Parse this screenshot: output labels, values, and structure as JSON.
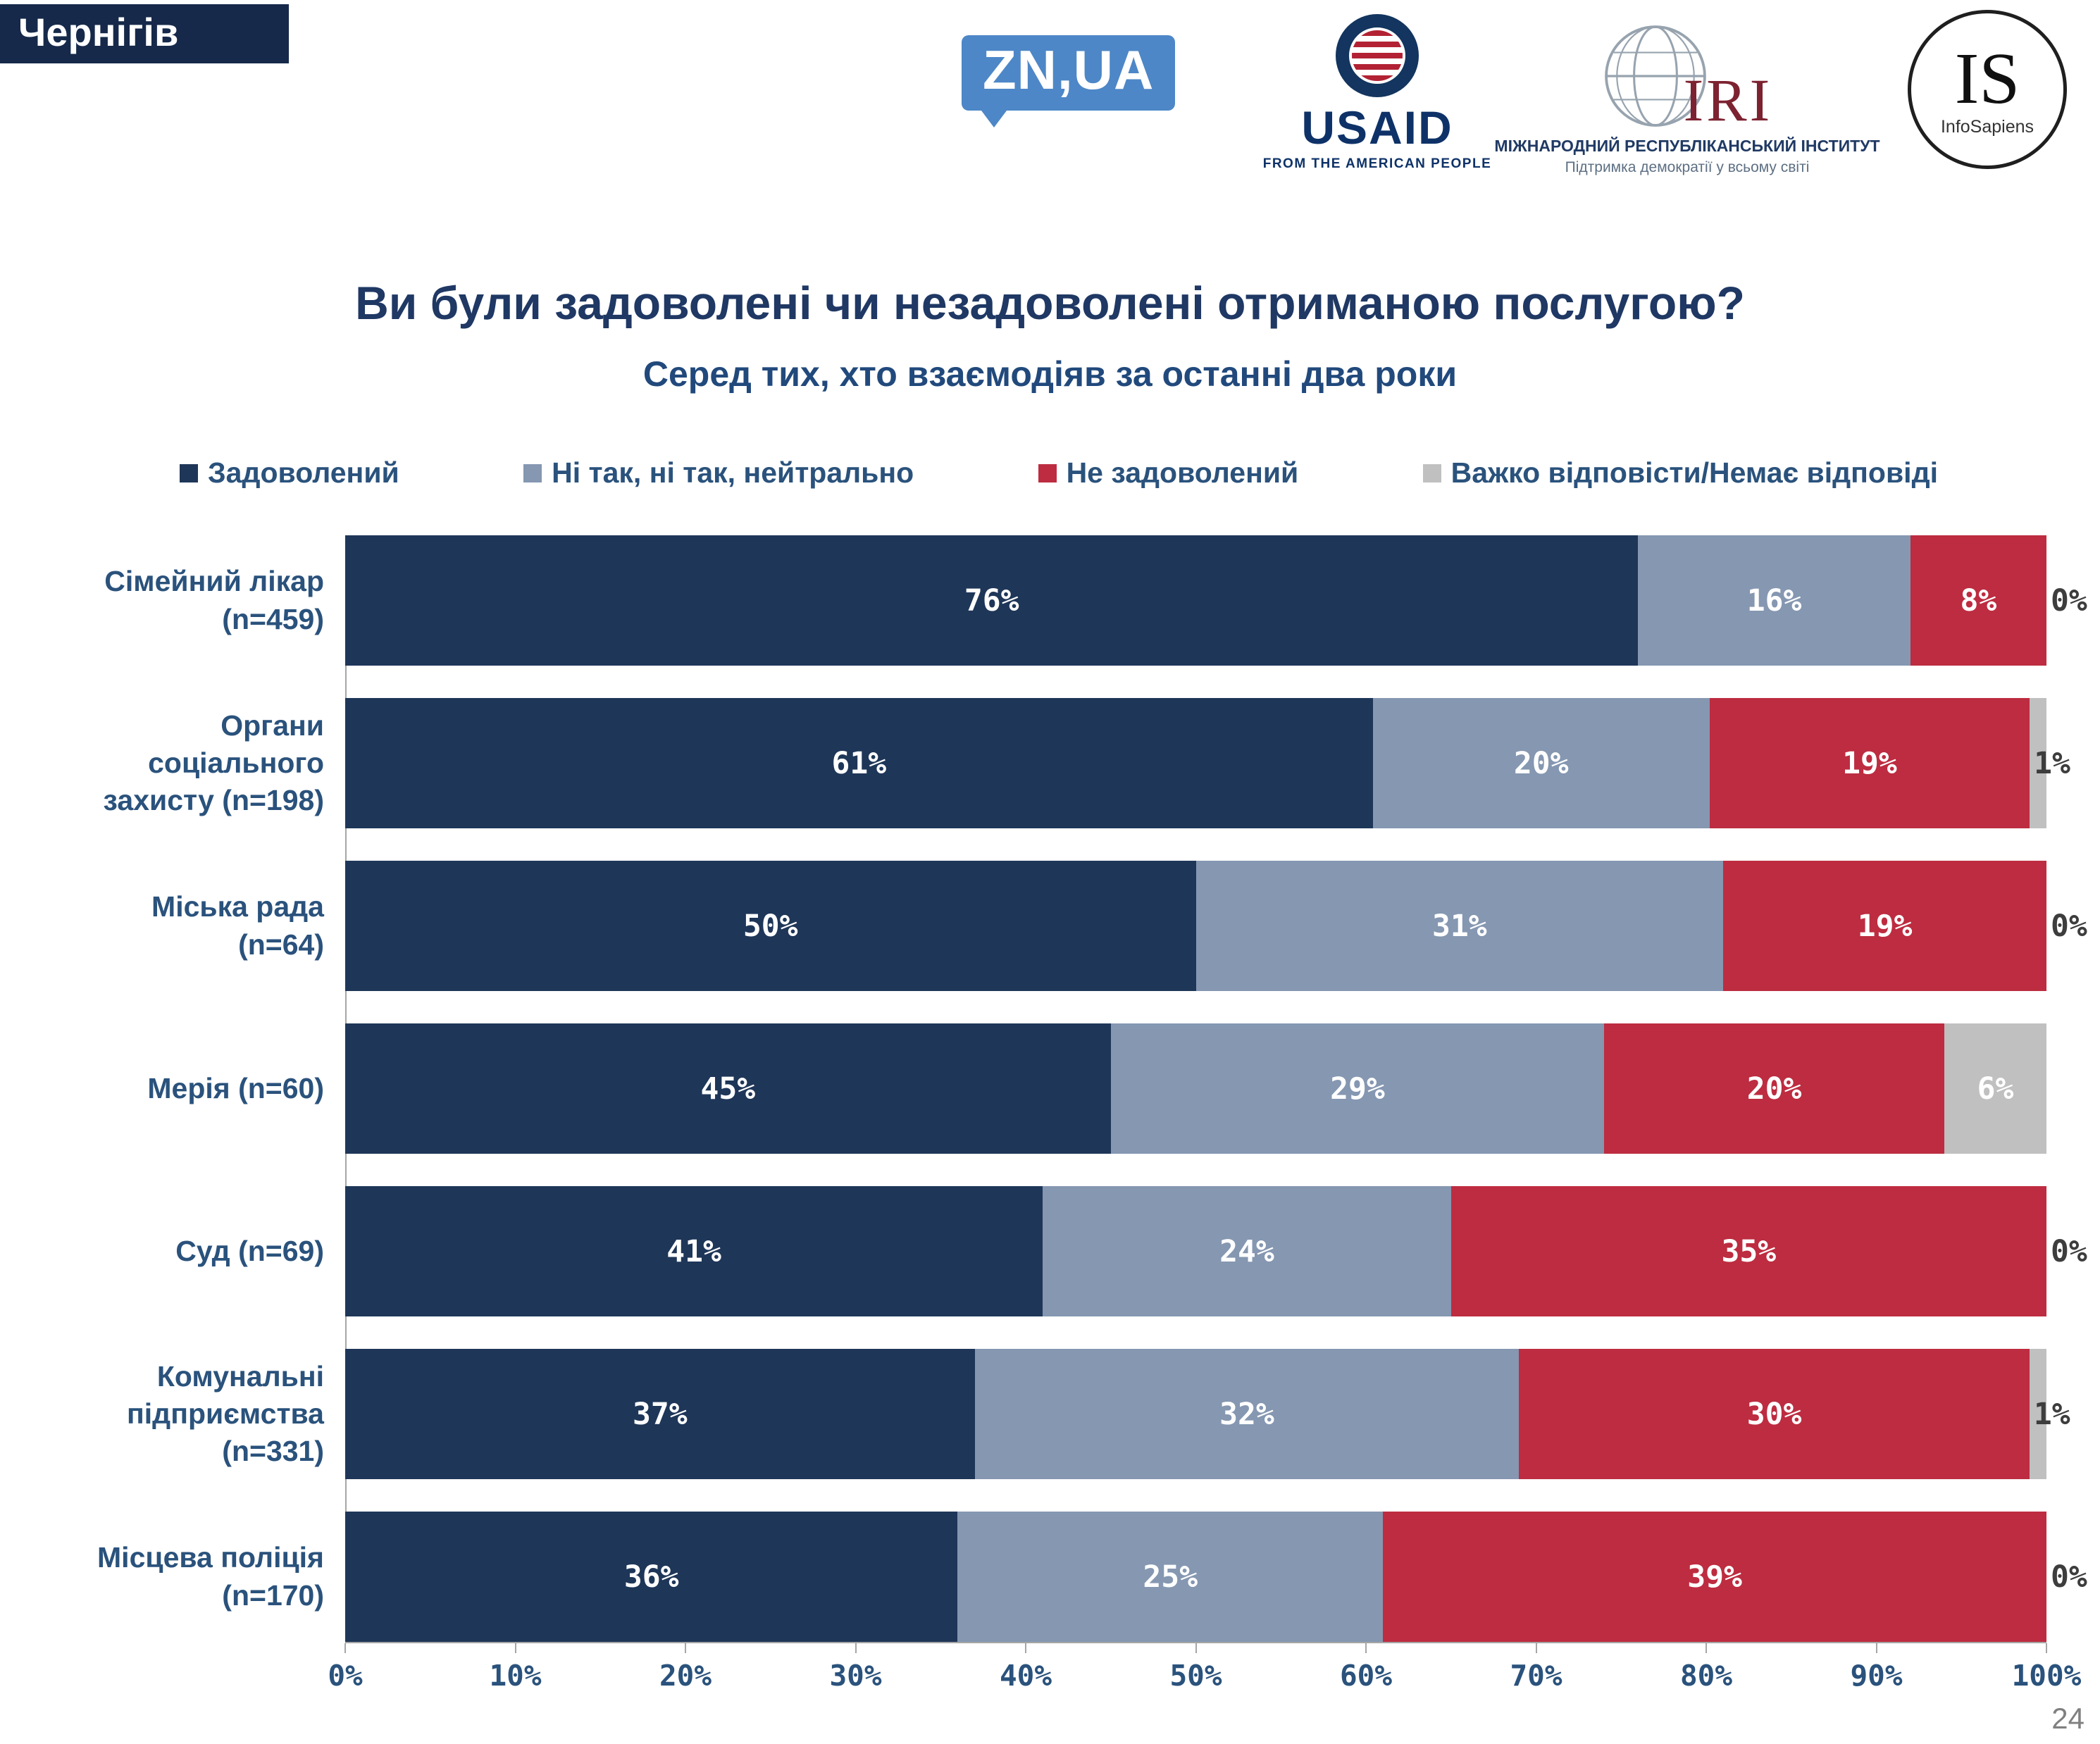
{
  "page": {
    "region_label": "Чернігів",
    "page_number": "24"
  },
  "logos": {
    "znua": "ZN,UA",
    "usaid": {
      "wordmark": "USAID",
      "caption": "FROM THE AMERICAN PEOPLE"
    },
    "iri": {
      "wordmark": "IRI",
      "line1": "МІЖНАРОДНИЙ РЕСПУБЛІКАНСЬКИЙ ІНСТИТУТ",
      "line2": "Підтримка демократії у всьому світі"
    },
    "infosapiens": {
      "monogram": "IS",
      "name": "InfoSapiens"
    }
  },
  "title": "Ви були задоволені чи незадоволені отриманою послугою?",
  "subtitle": "Серед тих, хто взаємодіяв за останні два роки",
  "chart_data": {
    "type": "bar",
    "orientation": "horizontal_stacked",
    "value_suffix": "%",
    "xlim": [
      0,
      100
    ],
    "x_ticks": [
      "0%",
      "10%",
      "20%",
      "30%",
      "40%",
      "50%",
      "60%",
      "70%",
      "80%",
      "90%",
      "100%"
    ],
    "legend_position": "top",
    "categories": [
      "Сімейний лікар\n(n=459)",
      "Органи\nсоціального\nзахисту (n=198)",
      "Міська рада\n(n=64)",
      "Мерія (n=60)",
      "Суд (n=69)",
      "Комунальні\nпідприємства\n(n=331)",
      "Місцева поліція\n(n=170)"
    ],
    "series": [
      {
        "name": "Задоволений",
        "color": "#1e3658",
        "values": [
          76,
          61,
          50,
          45,
          41,
          37,
          36
        ]
      },
      {
        "name": "Ні так, ні так, нейтрально",
        "color": "#8597b1",
        "values": [
          16,
          20,
          31,
          29,
          24,
          32,
          25
        ]
      },
      {
        "name": "Не задоволений",
        "color": "#bd2c40",
        "values": [
          8,
          19,
          19,
          20,
          35,
          30,
          39
        ]
      },
      {
        "name": "Важко відповісти/Немає відповіді",
        "color": "#c0c0c0",
        "values": [
          0,
          1,
          0,
          6,
          0,
          1,
          0
        ]
      }
    ]
  }
}
